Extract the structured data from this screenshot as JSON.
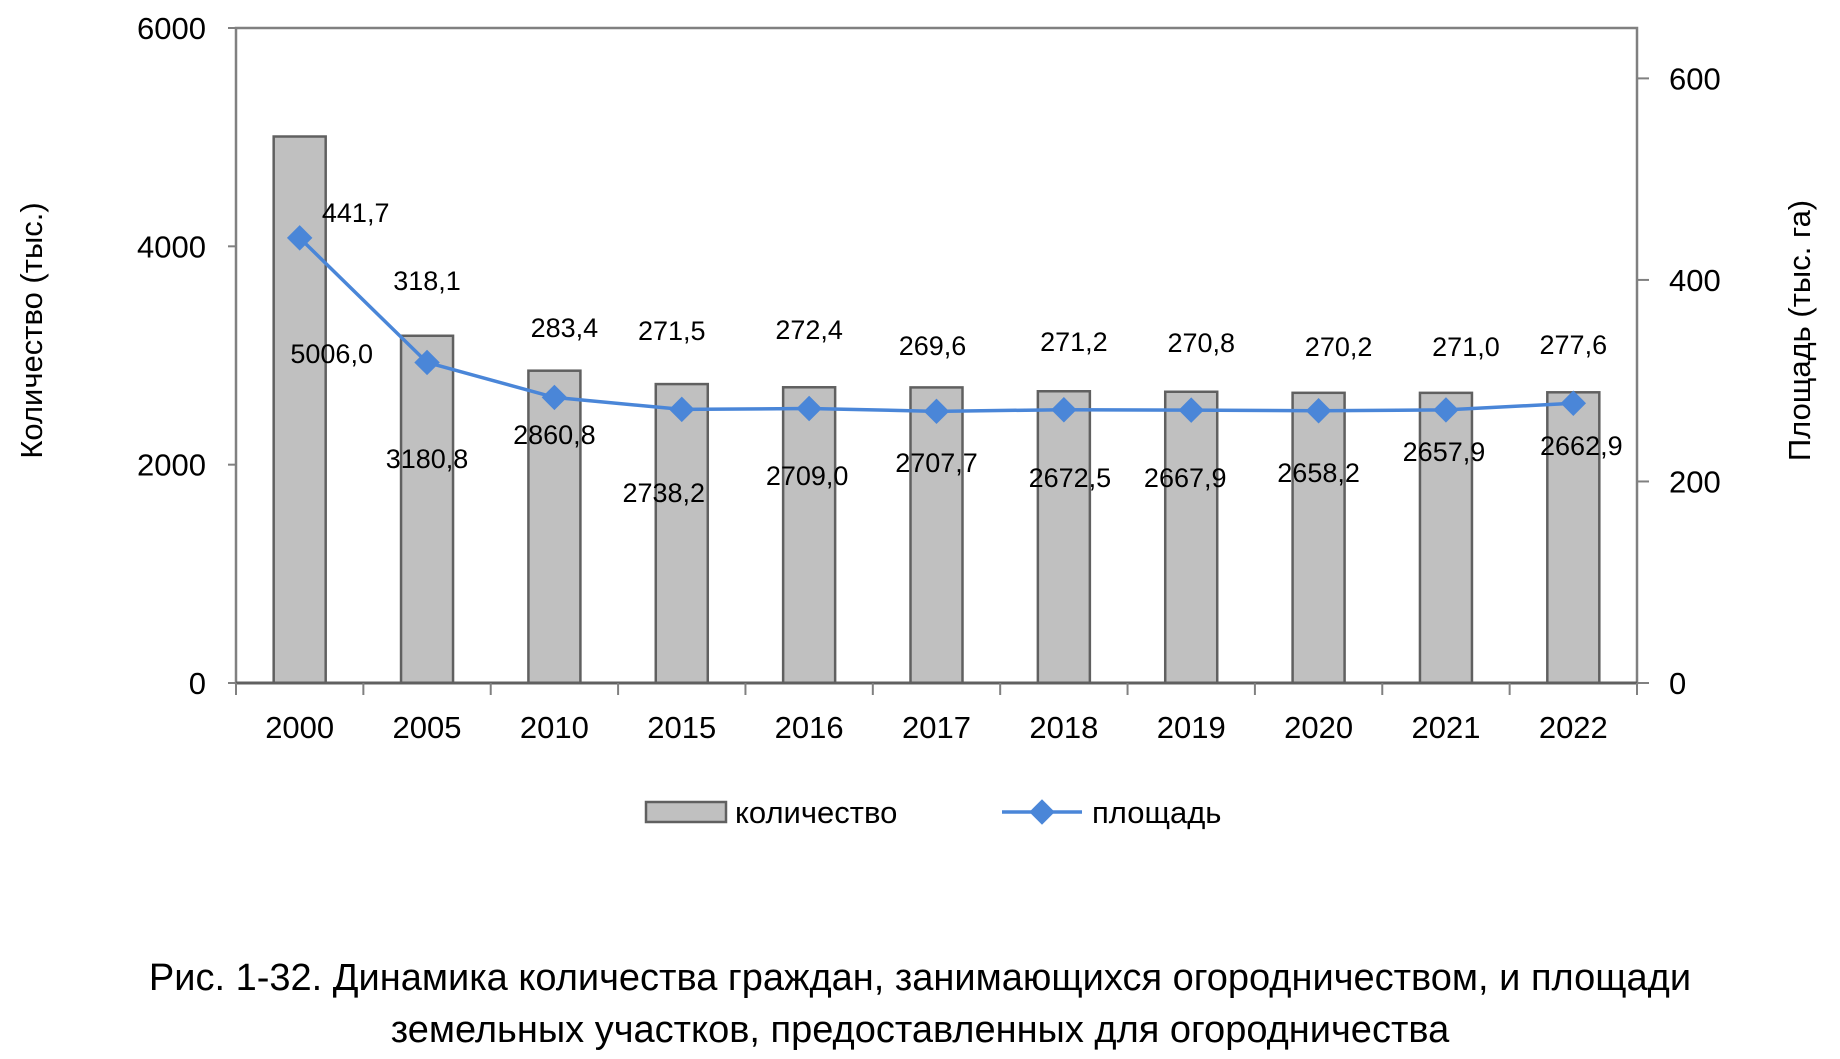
{
  "chart_data": {
    "type": "bar+line",
    "categories": [
      "2000",
      "2005",
      "2010",
      "2015",
      "2016",
      "2017",
      "2018",
      "2019",
      "2020",
      "2021",
      "2022"
    ],
    "series": [
      {
        "name": "количество",
        "type": "bar",
        "axis": "left",
        "color": "#c0c0c0",
        "values": [
          5006.0,
          3180.8,
          2860.8,
          2738.2,
          2709.0,
          2707.7,
          2672.5,
          2667.9,
          2658.2,
          2657.9,
          2662.9
        ],
        "labels": [
          "5006,0",
          "3180,8",
          "2860,8",
          "2738,2",
          "2709,0",
          "2707,7",
          "2672,5",
          "2667,9",
          "2658,2",
          "2657,9",
          "2662,9"
        ]
      },
      {
        "name": "площадь",
        "type": "line",
        "axis": "right",
        "color": "#4a86d8",
        "values": [
          441.7,
          318.1,
          283.4,
          271.5,
          272.4,
          269.6,
          271.2,
          270.8,
          270.2,
          271.0,
          277.6
        ],
        "labels": [
          "441,7",
          "318,1",
          "283,4",
          "271,5",
          "272,4",
          "269,6",
          "271,2",
          "270,8",
          "270,2",
          "271,0",
          "277,6"
        ]
      }
    ],
    "ylabel_left": "Количество (тыс.)",
    "ylabel_right": "Площадь (тыс. га)",
    "ylim_left": [
      0,
      6000
    ],
    "yticks_left": [
      "0",
      "2000",
      "4000",
      "6000"
    ],
    "ylim_right": [
      0,
      650
    ],
    "yticks_right": [
      "0",
      "200",
      "400",
      "600"
    ],
    "legend": {
      "placement": "bottom",
      "items": [
        "количество",
        "площадь"
      ]
    },
    "grid": false
  },
  "caption": {
    "line1": "Рис. 1-32. Динамика количества граждан, занимающихся огородничеством, и площади",
    "line2": "земельных участков, предоставленных для огородничества"
  }
}
